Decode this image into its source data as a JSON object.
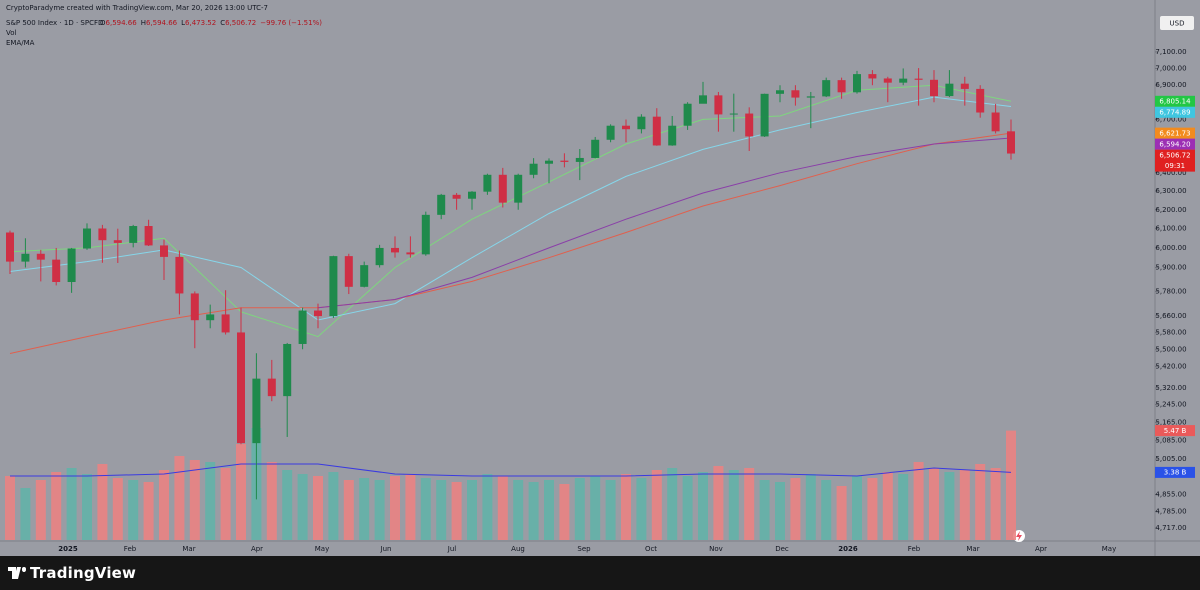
{
  "header": {
    "attribution": "CryptoParadyme created with TradingView.com, Mar 20, 2026 13:00 UTC-7",
    "symbol": "S&P 500 Index · 1D · SPCFD",
    "ohlc": [
      {
        "key": "O",
        "value": "6,594.66"
      },
      {
        "key": "H",
        "value": "6,594.66"
      },
      {
        "key": "L",
        "value": "6,473.52"
      },
      {
        "key": "C",
        "value": "6,506.72"
      }
    ],
    "change": "−99.76 (−1.51%)",
    "indicators": [
      "Vol",
      "EMA/MA"
    ],
    "currency": "USD"
  },
  "brand": "TradingView",
  "chart_data": {
    "type": "candlestick",
    "yscale": "log",
    "up_color": "#1f8a4c",
    "down_color": "#cf2f45",
    "open": [
      6080,
      5930,
      5970,
      5940,
      5827,
      5997,
      6101,
      6040,
      6026,
      6114,
      6013,
      5954,
      5770,
      5639,
      5667,
      5580,
      5074,
      5363,
      5283,
      5525,
      5686,
      5659,
      5958,
      5803,
      5912,
      6000,
      5977,
      5967,
      6173,
      6280,
      6259,
      6297,
      6389,
      6238,
      6389,
      6450,
      6467,
      6460,
      6482,
      6584,
      6664,
      6644,
      6716,
      6552,
      6664,
      6791,
      6840,
      6729,
      6734,
      6603,
      6849,
      6870,
      6827,
      6834,
      6930,
      6858,
      6966,
      6940,
      6915,
      6939,
      6932,
      6836,
      6909,
      6878,
      6740,
      6632
    ],
    "high": [
      6090,
      6050,
      5990,
      6000,
      6000,
      6128,
      6120,
      6100,
      6120,
      6147,
      6043,
      5986,
      5780,
      5715,
      5786,
      5700,
      5481,
      5450,
      5530,
      5700,
      5720,
      5960,
      5970,
      5930,
      6016,
      6060,
      6060,
      6190,
      6285,
      6290,
      6300,
      6395,
      6427,
      6395,
      6481,
      6480,
      6508,
      6532,
      6600,
      6672,
      6700,
      6730,
      6765,
      6720,
      6800,
      6920,
      6860,
      6850,
      6770,
      6850,
      6900,
      6900,
      6860,
      6945,
      6945,
      6985,
      6990,
      6950,
      7000,
      7002,
      6990,
      6990,
      6950,
      6900,
      6790,
      6700
    ],
    "low": [
      5867,
      5900,
      5830,
      5810,
      5773,
      5990,
      5924,
      5923,
      6003,
      6010,
      5837,
      5667,
      5505,
      5600,
      5570,
      5069,
      4835,
      5260,
      5101,
      5500,
      5600,
      5650,
      5767,
      5800,
      5900,
      5950,
      5950,
      5960,
      6150,
      6200,
      6200,
      6280,
      6212,
      6200,
      6370,
      6343,
      6430,
      6360,
      6480,
      6570,
      6570,
      6620,
      6550,
      6550,
      6640,
      6800,
      6630,
      6630,
      6521,
      6600,
      6800,
      6780,
      6650,
      6830,
      6820,
      6850,
      6900,
      6800,
      6900,
      6780,
      6800,
      6830,
      6780,
      6710,
      6620,
      6473
    ],
    "close": [
      5930,
      5970,
      5940,
      5827,
      5997,
      6101,
      6040,
      6026,
      6114,
      6013,
      5954,
      5770,
      5639,
      5667,
      5580,
      5074,
      5363,
      5283,
      5525,
      5686,
      5659,
      5958,
      5803,
      5912,
      6000,
      5977,
      5967,
      6173,
      6280,
      6259,
      6297,
      6389,
      6238,
      6389,
      6450,
      6467,
      6460,
      6482,
      6584,
      6664,
      6644,
      6716,
      6552,
      6664,
      6791,
      6840,
      6729,
      6734,
      6603,
      6849,
      6870,
      6827,
      6834,
      6930,
      6858,
      6966,
      6940,
      6915,
      6939,
      6932,
      6836,
      6909,
      6878,
      6740,
      6632,
      6506.72
    ],
    "ylim": [
      4669,
      7335
    ],
    "yticks": [
      {
        "value": 7100,
        "label": "7,100.00"
      },
      {
        "value": 7000,
        "label": "7,000.00"
      },
      {
        "value": 6900,
        "label": "6,900.00"
      },
      {
        "value": 6700,
        "label": "6,700.00"
      },
      {
        "value": 6400,
        "label": "6,400.00"
      },
      {
        "value": 6300,
        "label": "6,300.00"
      },
      {
        "value": 6200,
        "label": "6,200.00"
      },
      {
        "value": 6100,
        "label": "6,100.00"
      },
      {
        "value": 6000,
        "label": "6,000.00"
      },
      {
        "value": 5900,
        "label": "5,900.00"
      },
      {
        "value": 5780,
        "label": "5,780.00"
      },
      {
        "value": 5660,
        "label": "5,660.00"
      },
      {
        "value": 5580,
        "label": "5,580.00"
      },
      {
        "value": 5500,
        "label": "5,500.00"
      },
      {
        "value": 5420,
        "label": "5,420.00"
      },
      {
        "value": 5320,
        "label": "5,320.00"
      },
      {
        "value": 5245,
        "label": "5,245.00"
      },
      {
        "value": 5165,
        "label": "5,165.00"
      },
      {
        "value": 5085,
        "label": "5,085.00"
      },
      {
        "value": 5005,
        "label": "5,005.00"
      },
      {
        "value": 4855,
        "label": "4,855.00"
      },
      {
        "value": 4785,
        "label": "4,785.00"
      },
      {
        "value": 4717,
        "label": "4,717.00"
      }
    ],
    "xticks": [
      "2025",
      "Feb",
      "Mar",
      "Apr",
      "May",
      "Jun",
      "Jul",
      "Aug",
      "Sep",
      "Oct",
      "Nov",
      "Dec",
      "2026",
      "Feb",
      "Mar",
      "Apr",
      "May"
    ],
    "lines": [
      {
        "color": "#7ed67e",
        "x": [
          0,
          5,
          10,
          15,
          20,
          25,
          30,
          35,
          40,
          45,
          50,
          55,
          60,
          65
        ],
        "values": [
          5980,
          6000,
          6050,
          5680,
          5560,
          5900,
          6150,
          6350,
          6560,
          6700,
          6720,
          6870,
          6900,
          6805.14
        ]
      },
      {
        "color": "#86d6ea",
        "x": [
          0,
          5,
          10,
          15,
          20,
          25,
          30,
          35,
          40,
          45,
          50,
          55,
          60,
          65
        ],
        "values": [
          5880,
          5930,
          5990,
          5900,
          5640,
          5720,
          5950,
          6180,
          6380,
          6530,
          6640,
          6740,
          6830,
          6774.89
        ]
      },
      {
        "color": "#e0604e",
        "x": [
          0,
          5,
          10,
          15,
          20,
          25,
          30,
          35,
          40,
          45,
          50,
          55,
          60,
          65
        ],
        "values": [
          5480,
          5560,
          5640,
          5700,
          5700,
          5740,
          5830,
          5950,
          6080,
          6220,
          6330,
          6450,
          6560,
          6621.73
        ]
      },
      {
        "color": "#8a3fa8",
        "x": [
          20,
          25,
          30,
          35,
          40,
          45,
          50,
          55,
          60,
          65
        ],
        "values": [
          5700,
          5740,
          5850,
          6000,
          6150,
          6290,
          6400,
          6490,
          6560,
          6594.2
        ]
      }
    ],
    "price_labels": [
      {
        "value": 6805.14,
        "label": "6,805.14",
        "color": "#22c744"
      },
      {
        "value": 6774.89,
        "label": "6,774.89",
        "color": "#3fc6e0"
      },
      {
        "value": 6621.73,
        "label": "6,621.73",
        "color": "#f28b1e"
      },
      {
        "value": 6594.2,
        "label": "6,594.20",
        "color": "#9c2fb4"
      },
      {
        "value": 6506.72,
        "label": "6,506.72",
        "color": "#e02020"
      }
    ],
    "countdown": "09:31",
    "volume": {
      "up_color": "#63b3a9",
      "down_color": "#ea8383",
      "values": [
        3.2,
        2.6,
        3.0,
        3.4,
        3.6,
        3.3,
        3.8,
        3.1,
        3.0,
        2.9,
        3.5,
        4.2,
        4.0,
        3.9,
        3.6,
        4.8,
        5.6,
        3.9,
        3.5,
        3.3,
        3.2,
        3.4,
        3.0,
        3.1,
        3.0,
        3.2,
        3.3,
        3.1,
        3.0,
        2.9,
        3.0,
        3.3,
        3.2,
        3.0,
        2.9,
        3.0,
        2.8,
        3.1,
        3.2,
        3.0,
        3.3,
        3.1,
        3.5,
        3.6,
        3.2,
        3.4,
        3.7,
        3.5,
        3.6,
        3.0,
        2.9,
        3.1,
        3.3,
        3.0,
        2.7,
        3.2,
        3.1,
        3.4,
        3.3,
        3.9,
        3.6,
        3.4,
        3.5,
        3.8,
        3.6,
        5.47
      ],
      "ma": {
        "color": "#3a3ae0",
        "x": [
          0,
          5,
          10,
          15,
          20,
          25,
          30,
          35,
          40,
          45,
          50,
          55,
          60,
          65
        ],
        "values": [
          3.2,
          3.2,
          3.3,
          3.8,
          3.8,
          3.3,
          3.2,
          3.2,
          3.2,
          3.3,
          3.3,
          3.2,
          3.6,
          3.38
        ]
      },
      "labels": [
        {
          "value": 5.47,
          "label": "5.47 B",
          "color": "#ea5a5a"
        },
        {
          "value": 3.38,
          "label": "3.38 B",
          "color": "#2a52e8"
        }
      ]
    }
  }
}
